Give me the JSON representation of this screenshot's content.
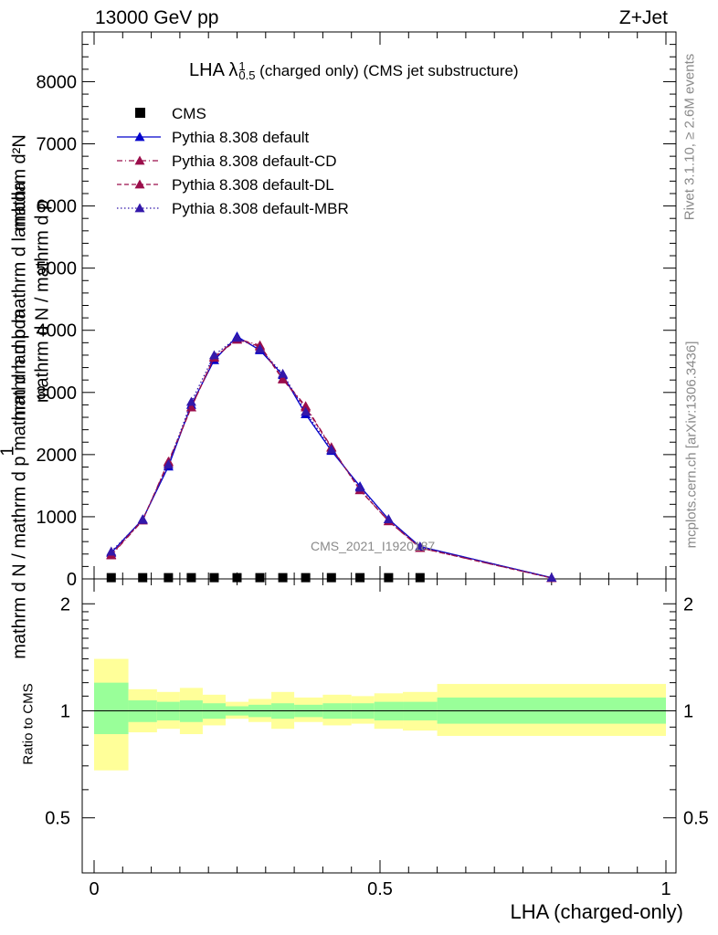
{
  "header": {
    "energy_label": "13000 GeV pp",
    "process_label": "Z+Jet"
  },
  "side_labels": {
    "rivet": "Rivet 3.1.10, ≥ 2.6M events",
    "mcplots": "mcplots.cern.ch [arXiv:1306.3436]"
  },
  "watermark": "CMS_2021_I1920187",
  "colors": {
    "mc": "#0000cc",
    "mc_alt": "#9b0e4b",
    "band_inner": "#99ff99",
    "band_outer": "#ffff99"
  },
  "chart_data": [
    {
      "type": "line",
      "title": "LHA λ",
      "title_sup": "1",
      "title_sub": "0.5",
      "title_rest": " (charged only) (CMS jet substructure)",
      "ylabel_top": "mathrm d²N",
      "ylabel_top_num": "1",
      "ylabel_main": "mathrm d N / mathrm d p",
      "ylabel_main2": "mathrm d p mathrm d lambda",
      "xlim": [
        0,
        1
      ],
      "ylim": [
        0,
        8800
      ],
      "y_ticks": [
        {
          "v": 0,
          "t": "0"
        },
        {
          "v": 1000,
          "t": "1000"
        },
        {
          "v": 2000,
          "t": "2000"
        },
        {
          "v": 3000,
          "t": "3000"
        },
        {
          "v": 4000,
          "t": "4000"
        },
        {
          "v": 5000,
          "t": "5000"
        },
        {
          "v": 6000,
          "t": "6000"
        },
        {
          "v": 7000,
          "t": "7000"
        },
        {
          "v": 8000,
          "t": "8000"
        }
      ],
      "x": [
        0.03,
        0.085,
        0.13,
        0.17,
        0.21,
        0.25,
        0.29,
        0.33,
        0.37,
        0.415,
        0.465,
        0.515,
        0.57,
        0.8
      ],
      "series": [
        {
          "name": "CMS",
          "marker": "square",
          "values": [
            20,
            20,
            20,
            20,
            20,
            20,
            20,
            20,
            20,
            20,
            20,
            20,
            20,
            null
          ]
        },
        {
          "name": "Pythia 8.308 default",
          "marker": "triangle",
          "line": "solid",
          "color": "#0000cc",
          "values": [
            420,
            960,
            1810,
            2800,
            3520,
            3900,
            3680,
            3280,
            2650,
            2060,
            1490,
            960,
            520,
            20
          ]
        },
        {
          "name": "Pythia 8.308 default-CD",
          "marker": "triangle",
          "line": "dashdot",
          "color": "#9b0e4b",
          "values": [
            380,
            940,
            1890,
            2760,
            3570,
            3860,
            3760,
            3220,
            2780,
            2120,
            1430,
            930,
            500,
            15
          ]
        },
        {
          "name": "Pythia 8.308 default-DL",
          "marker": "triangle",
          "line": "dashed",
          "color": "#9b0e4b",
          "values": [
            390,
            950,
            1870,
            2760,
            3560,
            3850,
            3740,
            3210,
            2760,
            2110,
            1430,
            930,
            500,
            15
          ]
        },
        {
          "name": "Pythia 8.308 default-MBR",
          "marker": "triangle",
          "line": "dotted",
          "color": "#3318aa",
          "values": [
            440,
            950,
            1840,
            2850,
            3600,
            3880,
            3700,
            3300,
            2690,
            2080,
            1470,
            960,
            520,
            20
          ]
        }
      ]
    },
    {
      "type": "area",
      "ylabel": "Ratio to CMS",
      "xlabel": "LHA (charged-only)",
      "xlim": [
        0,
        1
      ],
      "ylim": [
        0.35,
        2.35
      ],
      "log_y": true,
      "x_ticks": [
        {
          "v": 0,
          "t": "0"
        },
        {
          "v": 0.5,
          "t": "0.5"
        },
        {
          "v": 1,
          "t": "1"
        }
      ],
      "y_ticks": [
        {
          "v": 0.5,
          "t": "0.5"
        },
        {
          "v": 1,
          "t": "1"
        },
        {
          "v": 2,
          "t": "2"
        }
      ],
      "bins": [
        0,
        0.06,
        0.11,
        0.15,
        0.19,
        0.23,
        0.27,
        0.31,
        0.35,
        0.4,
        0.45,
        0.49,
        0.54,
        0.6,
        1.0
      ],
      "band_inner_lo": [
        0.86,
        0.93,
        0.94,
        0.93,
        0.95,
        0.97,
        0.96,
        0.95,
        0.96,
        0.95,
        0.95,
        0.94,
        0.94,
        0.92
      ],
      "band_inner_hi": [
        1.2,
        1.07,
        1.06,
        1.07,
        1.05,
        1.03,
        1.04,
        1.05,
        1.04,
        1.05,
        1.05,
        1.06,
        1.06,
        1.09
      ],
      "band_outer_lo": [
        0.68,
        0.87,
        0.89,
        0.86,
        0.91,
        0.95,
        0.93,
        0.89,
        0.93,
        0.91,
        0.92,
        0.89,
        0.88,
        0.85
      ],
      "band_outer_hi": [
        1.4,
        1.15,
        1.13,
        1.16,
        1.11,
        1.06,
        1.08,
        1.13,
        1.09,
        1.11,
        1.1,
        1.12,
        1.13,
        1.19
      ]
    }
  ]
}
